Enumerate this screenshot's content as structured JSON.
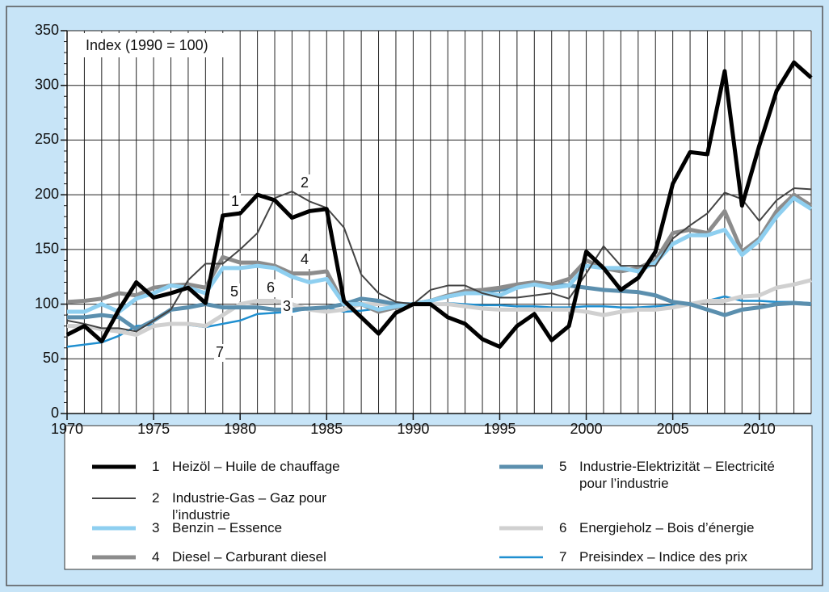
{
  "chart_data": {
    "type": "line",
    "title": "Index (1990 = 100)",
    "x": [
      1970,
      1971,
      1972,
      1973,
      1974,
      1975,
      1976,
      1977,
      1978,
      1979,
      1980,
      1981,
      1982,
      1983,
      1984,
      1985,
      1986,
      1987,
      1988,
      1989,
      1990,
      1991,
      1992,
      1993,
      1994,
      1995,
      1996,
      1997,
      1998,
      1999,
      2000,
      2001,
      2002,
      2003,
      2004,
      2005,
      2006,
      2007,
      2008,
      2009,
      2010,
      2011,
      2012,
      2013
    ],
    "xlim": [
      1970,
      2013
    ],
    "xticks": [
      1970,
      1975,
      1980,
      1985,
      1990,
      1995,
      2000,
      2005,
      2010
    ],
    "ylim": [
      0,
      350
    ],
    "yticks": [
      0,
      50,
      100,
      150,
      200,
      250,
      300,
      350
    ],
    "yminorticks": [
      10,
      20,
      30,
      40,
      60,
      70,
      80,
      90,
      110,
      120,
      130,
      140,
      160,
      170,
      180,
      190,
      210,
      220,
      230,
      240,
      260,
      270,
      280,
      290,
      310,
      320,
      330,
      340
    ],
    "grid": true,
    "series": [
      {
        "number": "1",
        "name": "Heizöl – Huile de chauffage",
        "color": "#000000",
        "line_width": 5,
        "values": [
          72,
          80,
          66,
          95,
          120,
          106,
          110,
          115,
          101,
          181,
          183,
          200,
          195,
          179,
          185,
          187,
          103,
          88,
          73,
          92,
          100,
          100,
          88,
          82,
          68,
          61,
          80,
          91,
          67,
          80,
          148,
          133,
          113,
          124,
          148,
          210,
          239,
          237,
          313,
          190,
          245,
          295,
          321,
          307
        ]
      },
      {
        "number": "2",
        "name": "Industrie-Gas – Gaz pour l’industrie",
        "color": "#444444",
        "line_width": 2,
        "values": [
          85,
          82,
          78,
          78,
          75,
          85,
          95,
          122,
          137,
          137,
          150,
          165,
          197,
          203,
          194,
          188,
          170,
          127,
          110,
          102,
          100,
          113,
          117,
          117,
          110,
          106,
          106,
          108,
          110,
          105,
          128,
          153,
          135,
          135,
          135,
          160,
          172,
          183,
          202,
          196,
          176,
          195,
          206,
          205
        ]
      },
      {
        "number": "3",
        "name": "Benzin – Essence",
        "color": "#8ecff0",
        "line_width": 5,
        "values": [
          93,
          93,
          100,
          93,
          105,
          110,
          117,
          115,
          110,
          133,
          133,
          135,
          133,
          125,
          120,
          123,
          100,
          100,
          95,
          98,
          100,
          103,
          107,
          110,
          110,
          108,
          115,
          118,
          115,
          117,
          135,
          133,
          133,
          130,
          138,
          155,
          163,
          163,
          168,
          145,
          158,
          180,
          197,
          187
        ]
      },
      {
        "number": "4",
        "name": "Diesel – Carburant diesel",
        "color": "#8c8c8c",
        "line_width": 5,
        "values": [
          102,
          103,
          105,
          110,
          108,
          115,
          117,
          118,
          115,
          143,
          138,
          138,
          135,
          128,
          128,
          130,
          100,
          100,
          93,
          97,
          100,
          103,
          108,
          112,
          113,
          115,
          118,
          120,
          118,
          123,
          140,
          133,
          130,
          133,
          140,
          165,
          168,
          165,
          185,
          148,
          160,
          185,
          200,
          190
        ]
      },
      {
        "number": "5",
        "name": "Industrie-Elektrizität – Electricité pour l’industrie",
        "color": "#5b8fae",
        "line_width": 5,
        "values": [
          88,
          88,
          90,
          88,
          77,
          85,
          95,
          97,
          100,
          97,
          97,
          97,
          95,
          95,
          96,
          97,
          100,
          105,
          103,
          100,
          100,
          103,
          107,
          110,
          112,
          113,
          116,
          118,
          118,
          117,
          115,
          113,
          112,
          111,
          108,
          102,
          100,
          95,
          90,
          95,
          97,
          100,
          101,
          100
        ]
      },
      {
        "number": "6",
        "name": "Energieholz – Bois d’énergie",
        "color": "#d0d0d0",
        "line_width": 5,
        "values": [
          80,
          80,
          77,
          75,
          72,
          80,
          82,
          82,
          80,
          90,
          100,
          103,
          103,
          100,
          95,
          93,
          95,
          100,
          100,
          100,
          100,
          100,
          100,
          98,
          96,
          95,
          95,
          95,
          95,
          95,
          93,
          90,
          93,
          95,
          95,
          97,
          100,
          103,
          103,
          107,
          108,
          115,
          118,
          122
        ]
      },
      {
        "number": "7",
        "name": "Preisindex – Indice des prix",
        "color": "#1f8fd0",
        "line_width": 2.5,
        "values": [
          61,
          63,
          65,
          71,
          80,
          81,
          81,
          81,
          79,
          82,
          85,
          91,
          92,
          93,
          96,
          97,
          93,
          94,
          96,
          98,
          100,
          100,
          101,
          100,
          99,
          99,
          98,
          98,
          97,
          97,
          98,
          98,
          97,
          97,
          98,
          99,
          101,
          103,
          107,
          103,
          103,
          102,
          102,
          101
        ]
      }
    ]
  }
}
